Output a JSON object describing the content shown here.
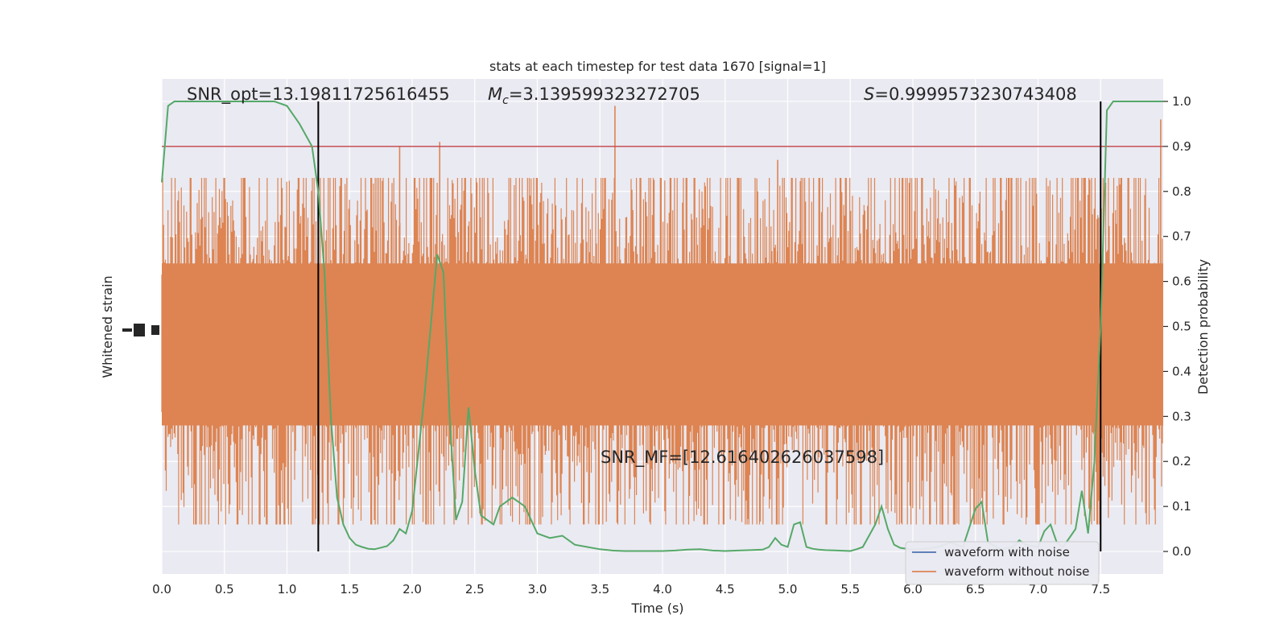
{
  "chart_data": {
    "type": "line",
    "title": "stats at each timestep for test data 1670 [signal=1]",
    "xlabel": "Time (s)",
    "ylabel_left": "Whitened strain",
    "ylabel_right": "Detection probability",
    "xlim": [
      0,
      8
    ],
    "ylim_right": [
      -0.05,
      1.05
    ],
    "x_ticks": [
      "0.0",
      "0.5",
      "1.0",
      "1.5",
      "2.0",
      "2.5",
      "3.0",
      "3.5",
      "4.0",
      "4.5",
      "5.0",
      "5.5",
      "6.0",
      "6.5",
      "7.0",
      "7.5"
    ],
    "y_right_ticks": [
      "0.0",
      "0.1",
      "0.2",
      "0.3",
      "0.4",
      "0.5",
      "0.6",
      "0.7",
      "0.8",
      "0.9",
      "1.0"
    ],
    "grid": true,
    "legend_position": "lower-right",
    "background": "#eaeaf2",
    "annotations": {
      "snr_opt": "SNR_opt=13.19811725616455",
      "mc_symbol": "M",
      "mc_sub": "c",
      "mc_value": "=3.139599323272705",
      "s_symbol": "S",
      "s_value": "=0.9999573230743408",
      "snr_mf": "SNR_MF=[12.616402626037598]"
    },
    "threshold": {
      "y": 0.9,
      "color": "#c44e52"
    },
    "vertical_lines": [
      1.25,
      7.5
    ],
    "series": [
      {
        "name": "waveform with noise",
        "color": "#4c72b0"
      },
      {
        "name": "waveform without noise",
        "color": "#dd8452"
      }
    ],
    "probability": {
      "color": "#55a868",
      "x": [
        0.0,
        0.05,
        0.1,
        0.2,
        0.3,
        0.5,
        0.7,
        0.9,
        1.0,
        1.05,
        1.1,
        1.2,
        1.25,
        1.3,
        1.35,
        1.4,
        1.45,
        1.5,
        1.55,
        1.6,
        1.65,
        1.7,
        1.8,
        1.85,
        1.9,
        1.95,
        2.0,
        2.1,
        2.2,
        2.25,
        2.3,
        2.35,
        2.4,
        2.45,
        2.5,
        2.55,
        2.65,
        2.7,
        2.8,
        2.9,
        3.0,
        3.1,
        3.2,
        3.3,
        3.4,
        3.5,
        3.6,
        3.7,
        3.8,
        3.9,
        4.0,
        4.1,
        4.2,
        4.3,
        4.4,
        4.5,
        4.6,
        4.7,
        4.8,
        4.85,
        4.9,
        4.95,
        5.0,
        5.05,
        5.1,
        5.15,
        5.2,
        5.25,
        5.3,
        5.4,
        5.5,
        5.55,
        5.6,
        5.7,
        5.75,
        5.8,
        5.85,
        5.9,
        6.0,
        6.1,
        6.2,
        6.3,
        6.4,
        6.5,
        6.55,
        6.6,
        6.7,
        6.8,
        6.85,
        6.9,
        7.0,
        7.05,
        7.1,
        7.15,
        7.2,
        7.3,
        7.35,
        7.4,
        7.45,
        7.5,
        7.55,
        7.6,
        7.7,
        7.8,
        8.0
      ],
      "y": [
        0.82,
        0.99,
        1.0,
        1.0,
        1.0,
        1.0,
        1.0,
        1.0,
        0.99,
        0.97,
        0.95,
        0.9,
        0.8,
        0.62,
        0.3,
        0.12,
        0.06,
        0.03,
        0.015,
        0.01,
        0.006,
        0.005,
        0.012,
        0.025,
        0.05,
        0.04,
        0.09,
        0.35,
        0.66,
        0.62,
        0.3,
        0.07,
        0.11,
        0.32,
        0.18,
        0.08,
        0.06,
        0.1,
        0.12,
        0.1,
        0.04,
        0.03,
        0.035,
        0.015,
        0.01,
        0.005,
        0.002,
        0.001,
        0.001,
        0.001,
        0.001,
        0.002,
        0.004,
        0.005,
        0.002,
        0.001,
        0.002,
        0.003,
        0.004,
        0.01,
        0.03,
        0.015,
        0.01,
        0.06,
        0.065,
        0.01,
        0.006,
        0.004,
        0.003,
        0.002,
        0.001,
        0.005,
        0.01,
        0.06,
        0.1,
        0.05,
        0.015,
        0.008,
        0.004,
        0.006,
        0.01,
        0.02,
        0.01,
        0.095,
        0.11,
        0.02,
        0.005,
        0.01,
        0.025,
        0.015,
        0.01,
        0.045,
        0.06,
        0.02,
        0.01,
        0.05,
        0.135,
        0.04,
        0.2,
        0.5,
        0.98,
        1.0,
        1.0,
        1.0,
        1.0
      ]
    },
    "noise_peaks": [
      {
        "x": 1.9,
        "y": 0.9
      },
      {
        "x": 2.22,
        "y": 0.91
      },
      {
        "x": 3.62,
        "y": 0.99
      },
      {
        "x": 4.92,
        "y": 0.87
      },
      {
        "x": 7.98,
        "y": 0.96
      }
    ]
  }
}
